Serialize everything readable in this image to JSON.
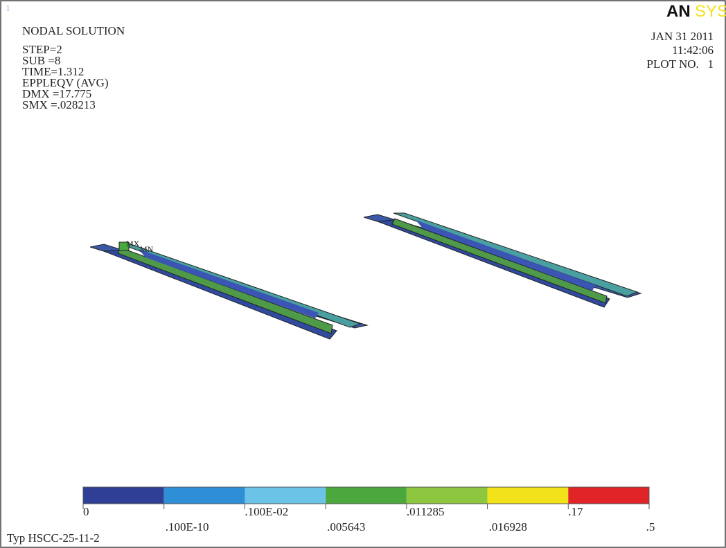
{
  "window_number": "1",
  "header": {
    "title": "NODAL SOLUTION",
    "lines": [
      "STEP=2",
      "SUB =8",
      "TIME=1.312",
      "EPPLEQV  (AVG)",
      "DMX =17.775",
      "SMX =.028213"
    ]
  },
  "logo": {
    "part1": "AN",
    "part2": "SYS"
  },
  "info": {
    "date": "JAN 31 2011",
    "time": "11:42:06",
    "plot_no": "PLOT NO.   1"
  },
  "markers": {
    "max": "MX",
    "min": "MN"
  },
  "legend": {
    "colors": [
      "#2f3f96",
      "#2e8fd6",
      "#6cc3e8",
      "#4aa83c",
      "#8dc63f",
      "#f2e21a",
      "#e02427"
    ],
    "labels": [
      "0",
      ".100E-10",
      ".100E-02",
      ".005643",
      ".011285",
      ".016928",
      ".17",
      ".5"
    ]
  },
  "footer": "Typ HSCC-25-11-2"
}
